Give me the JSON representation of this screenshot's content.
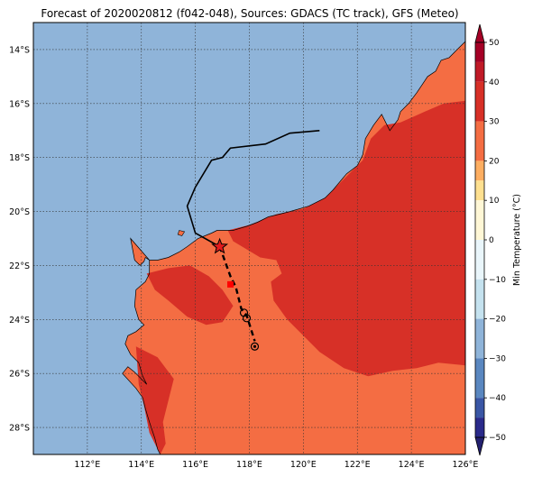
{
  "title": "Forecast of 2020020812 (f042-048), Sources: GDACS (TC track), GFS (Meteo)",
  "map": {
    "lon_range": [
      110.0,
      126.0
    ],
    "lat_range": [
      -29.0,
      -13.0
    ],
    "ocean_color": "#8fb4d9",
    "land_colors": {
      "20-30": "#f46d43",
      "30-40": "#d73027"
    },
    "gridlines": true
  },
  "lat_ticks": [
    {
      "value": -14,
      "label": "14°S"
    },
    {
      "value": -16,
      "label": "16°S"
    },
    {
      "value": -18,
      "label": "18°S"
    },
    {
      "value": -20,
      "label": "20°S"
    },
    {
      "value": -22,
      "label": "22°S"
    },
    {
      "value": -24,
      "label": "24°S"
    },
    {
      "value": -26,
      "label": "26°S"
    },
    {
      "value": -28,
      "label": "28°S"
    }
  ],
  "lon_ticks": [
    {
      "value": 112,
      "label": "112°E"
    },
    {
      "value": 114,
      "label": "114°E"
    },
    {
      "value": 116,
      "label": "116°E"
    },
    {
      "value": 118,
      "label": "118°E"
    },
    {
      "value": 120,
      "label": "120°E"
    },
    {
      "value": 122,
      "label": "122°E"
    },
    {
      "value": 124,
      "label": "124°E"
    },
    {
      "value": 126,
      "label": "126°E"
    }
  ],
  "colorbar": {
    "label": "Min Temperature (°C)",
    "range": [
      -50,
      50
    ],
    "ticks": [
      {
        "value": 50,
        "label": "50"
      },
      {
        "value": 40,
        "label": "40"
      },
      {
        "value": 30,
        "label": "30"
      },
      {
        "value": 20,
        "label": "20"
      },
      {
        "value": 10,
        "label": "10"
      },
      {
        "value": 0,
        "label": "0"
      },
      {
        "value": -10,
        "label": "−10"
      },
      {
        "value": -20,
        "label": "−20"
      },
      {
        "value": -30,
        "label": "−30"
      },
      {
        "value": -40,
        "label": "−40"
      },
      {
        "value": -50,
        "label": "−50"
      }
    ],
    "bands": [
      {
        "from": 45,
        "to": 50,
        "color": "#a50026"
      },
      {
        "from": 40,
        "to": 45,
        "color": "#c01a27"
      },
      {
        "from": 30,
        "to": 40,
        "color": "#d73027"
      },
      {
        "from": 20,
        "to": 30,
        "color": "#f46d43"
      },
      {
        "from": 15,
        "to": 20,
        "color": "#fdae61"
      },
      {
        "from": 10,
        "to": 15,
        "color": "#fee090"
      },
      {
        "from": 0,
        "to": 10,
        "color": "#fff7d6"
      },
      {
        "from": -10,
        "to": 0,
        "color": "#eaf6fb"
      },
      {
        "from": -20,
        "to": -10,
        "color": "#c5e2ef"
      },
      {
        "from": -30,
        "to": -20,
        "color": "#8fb4d9"
      },
      {
        "from": -40,
        "to": -30,
        "color": "#5a87c0"
      },
      {
        "from": -45,
        "to": -40,
        "color": "#3a56a5"
      },
      {
        "from": -50,
        "to": -45,
        "color": "#2a2a8a"
      }
    ],
    "top_arrow_color": "#a50026",
    "bottom_arrow_color": "#23206f"
  },
  "track": {
    "past": [
      [
        120.6,
        -17.0
      ],
      [
        119.5,
        -17.1
      ],
      [
        118.6,
        -17.5
      ],
      [
        117.3,
        -17.65
      ],
      [
        117.0,
        -18.0
      ],
      [
        116.6,
        -18.1
      ],
      [
        116.0,
        -19.1
      ],
      [
        115.7,
        -19.8
      ],
      [
        116.0,
        -20.8
      ],
      [
        116.9,
        -21.3
      ]
    ],
    "forecast": [
      [
        116.9,
        -21.3
      ],
      [
        117.3,
        -22.4
      ],
      [
        117.5,
        -22.8
      ],
      [
        117.7,
        -23.6
      ],
      [
        117.9,
        -23.85
      ],
      [
        118.2,
        -24.8
      ]
    ],
    "current": [
      116.9,
      -21.3
    ],
    "red_square": [
      117.3,
      -22.7
    ],
    "markers": [
      [
        117.8,
        -23.75
      ],
      [
        117.9,
        -23.95
      ],
      [
        118.2,
        -25.0
      ]
    ]
  },
  "coast": [
    [
      110.0,
      -21.0
    ],
    [
      113.6,
      -21.0
    ],
    [
      113.75,
      -21.8
    ],
    [
      113.95,
      -22.0
    ],
    [
      114.1,
      -21.85
    ],
    [
      114.15,
      -21.7
    ],
    [
      114.3,
      -21.8
    ],
    [
      114.3,
      -22.3
    ],
    [
      114.15,
      -22.6
    ],
    [
      113.8,
      -22.9
    ],
    [
      113.75,
      -23.5
    ],
    [
      113.9,
      -24.0
    ],
    [
      114.1,
      -24.2
    ],
    [
      113.8,
      -24.45
    ],
    [
      113.5,
      -24.6
    ],
    [
      113.4,
      -24.9
    ],
    [
      113.6,
      -25.3
    ],
    [
      113.9,
      -25.6
    ],
    [
      114.05,
      -26.1
    ],
    [
      114.2,
      -26.4
    ],
    [
      113.75,
      -25.95
    ],
    [
      113.5,
      -25.75
    ],
    [
      113.3,
      -26.0
    ],
    [
      113.8,
      -26.55
    ],
    [
      114.05,
      -26.9
    ],
    [
      114.15,
      -27.3
    ],
    [
      114.3,
      -27.8
    ],
    [
      114.5,
      -28.4
    ],
    [
      114.6,
      -28.8
    ],
    [
      114.7,
      -29.0
    ],
    [
      126.0,
      -29.0
    ],
    [
      126.0,
      -13.7
    ],
    [
      125.7,
      -14.0
    ],
    [
      125.4,
      -14.3
    ],
    [
      125.1,
      -14.4
    ],
    [
      124.9,
      -14.8
    ],
    [
      124.6,
      -15.0
    ],
    [
      124.4,
      -15.3
    ],
    [
      124.2,
      -15.6
    ],
    [
      123.9,
      -16.0
    ],
    [
      123.6,
      -16.3
    ],
    [
      123.5,
      -16.6
    ],
    [
      123.2,
      -17.0
    ],
    [
      123.0,
      -16.6
    ],
    [
      122.9,
      -16.4
    ],
    [
      122.6,
      -16.8
    ],
    [
      122.3,
      -17.3
    ],
    [
      122.2,
      -17.9
    ],
    [
      122.0,
      -18.3
    ],
    [
      121.6,
      -18.6
    ],
    [
      121.1,
      -19.2
    ],
    [
      120.8,
      -19.5
    ],
    [
      120.2,
      -19.8
    ],
    [
      119.5,
      -20.0
    ],
    [
      119.1,
      -20.1
    ],
    [
      118.7,
      -20.2
    ],
    [
      118.3,
      -20.4
    ],
    [
      117.9,
      -20.55
    ],
    [
      117.4,
      -20.7
    ],
    [
      116.8,
      -20.7
    ],
    [
      116.6,
      -20.8
    ],
    [
      116.1,
      -21.0
    ],
    [
      115.7,
      -21.3
    ],
    [
      115.4,
      -21.5
    ],
    [
      115.0,
      -21.7
    ],
    [
      114.6,
      -21.8
    ],
    [
      114.3,
      -21.8
    ],
    [
      114.15,
      -21.7
    ],
    [
      114.1,
      -21.85
    ],
    [
      113.95,
      -22.0
    ],
    [
      113.75,
      -21.8
    ],
    [
      113.6,
      -21.0
    ],
    [
      110.0,
      -21.0
    ]
  ],
  "land_poly": [
    [
      113.6,
      -21.0
    ],
    [
      113.75,
      -21.8
    ],
    [
      113.95,
      -22.0
    ],
    [
      114.1,
      -21.85
    ],
    [
      114.15,
      -21.7
    ],
    [
      114.3,
      -21.8
    ],
    [
      114.6,
      -21.8
    ],
    [
      115.0,
      -21.7
    ],
    [
      115.4,
      -21.5
    ],
    [
      115.7,
      -21.3
    ],
    [
      116.1,
      -21.0
    ],
    [
      116.6,
      -20.8
    ],
    [
      116.8,
      -20.7
    ],
    [
      117.4,
      -20.7
    ],
    [
      117.9,
      -20.55
    ],
    [
      118.3,
      -20.4
    ],
    [
      118.7,
      -20.2
    ],
    [
      119.1,
      -20.1
    ],
    [
      119.5,
      -20.0
    ],
    [
      120.2,
      -19.8
    ],
    [
      120.8,
      -19.5
    ],
    [
      121.1,
      -19.2
    ],
    [
      121.6,
      -18.6
    ],
    [
      122.0,
      -18.3
    ],
    [
      122.2,
      -17.9
    ],
    [
      122.3,
      -17.3
    ],
    [
      122.6,
      -16.8
    ],
    [
      122.9,
      -16.4
    ],
    [
      123.0,
      -16.6
    ],
    [
      123.2,
      -17.0
    ],
    [
      123.5,
      -16.6
    ],
    [
      123.6,
      -16.3
    ],
    [
      123.9,
      -16.0
    ],
    [
      124.2,
      -15.6
    ],
    [
      124.4,
      -15.3
    ],
    [
      124.6,
      -15.0
    ],
    [
      124.9,
      -14.8
    ],
    [
      125.1,
      -14.4
    ],
    [
      125.4,
      -14.3
    ],
    [
      125.7,
      -14.0
    ],
    [
      126.0,
      -13.7
    ],
    [
      126.0,
      -29.0
    ],
    [
      114.7,
      -29.0
    ],
    [
      114.6,
      -28.8
    ],
    [
      114.5,
      -28.4
    ],
    [
      114.3,
      -27.8
    ],
    [
      114.15,
      -27.3
    ],
    [
      114.05,
      -26.9
    ],
    [
      113.8,
      -26.55
    ],
    [
      113.3,
      -26.0
    ],
    [
      113.5,
      -25.75
    ],
    [
      113.75,
      -25.95
    ],
    [
      114.2,
      -26.4
    ],
    [
      114.05,
      -26.1
    ],
    [
      113.9,
      -25.6
    ],
    [
      113.6,
      -25.3
    ],
    [
      113.4,
      -24.9
    ],
    [
      113.5,
      -24.6
    ],
    [
      113.8,
      -24.45
    ],
    [
      114.1,
      -24.2
    ],
    [
      113.9,
      -24.0
    ],
    [
      113.75,
      -23.5
    ],
    [
      113.8,
      -22.9
    ],
    [
      114.15,
      -22.6
    ],
    [
      114.3,
      -22.3
    ],
    [
      114.3,
      -21.8
    ]
  ],
  "warm_zone": [
    [
      117.2,
      -20.7
    ],
    [
      118.0,
      -20.5
    ],
    [
      119.0,
      -20.1
    ],
    [
      120.0,
      -19.9
    ],
    [
      120.8,
      -19.5
    ],
    [
      121.3,
      -19.0
    ],
    [
      122.2,
      -18.1
    ],
    [
      122.5,
      -17.3
    ],
    [
      123.0,
      -16.8
    ],
    [
      123.6,
      -16.7
    ],
    [
      124.5,
      -16.3
    ],
    [
      125.2,
      -16.0
    ],
    [
      126.0,
      -15.9
    ],
    [
      126.0,
      -25.7
    ],
    [
      125.0,
      -25.6
    ],
    [
      124.2,
      -25.8
    ],
    [
      123.3,
      -25.9
    ],
    [
      122.4,
      -26.1
    ],
    [
      121.5,
      -25.8
    ],
    [
      120.6,
      -25.2
    ],
    [
      120.0,
      -24.6
    ],
    [
      119.4,
      -24.0
    ],
    [
      118.9,
      -23.3
    ],
    [
      118.8,
      -22.6
    ],
    [
      119.2,
      -22.3
    ],
    [
      119.0,
      -21.8
    ],
    [
      118.4,
      -21.7
    ],
    [
      117.9,
      -21.4
    ],
    [
      117.4,
      -21.1
    ]
  ],
  "warm_zone2": [
    [
      114.2,
      -22.3
    ],
    [
      115.0,
      -22.1
    ],
    [
      115.8,
      -22.0
    ],
    [
      116.5,
      -22.4
    ],
    [
      117.0,
      -22.9
    ],
    [
      117.4,
      -23.5
    ],
    [
      117.0,
      -24.1
    ],
    [
      116.4,
      -24.2
    ],
    [
      115.7,
      -23.9
    ],
    [
      115.0,
      -23.3
    ],
    [
      114.5,
      -22.9
    ]
  ],
  "warm_zone3": [
    [
      113.8,
      -25.0
    ],
    [
      114.6,
      -25.4
    ],
    [
      115.2,
      -26.2
    ],
    [
      115.0,
      -27.0
    ],
    [
      114.8,
      -27.8
    ],
    [
      114.9,
      -28.6
    ],
    [
      114.7,
      -29.0
    ],
    [
      114.3,
      -28.2
    ],
    [
      114.1,
      -27.2
    ],
    [
      113.9,
      -26.4
    ]
  ],
  "islands": [
    [
      115.4,
      -20.7
    ],
    [
      115.6,
      -20.75
    ],
    [
      115.5,
      -20.9
    ],
    [
      115.35,
      -20.85
    ]
  ]
}
